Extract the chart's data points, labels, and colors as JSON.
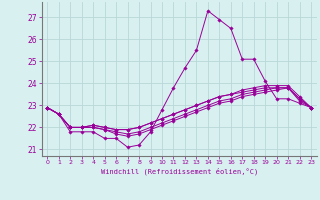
{
  "xlabel": "Windchill (Refroidissement éolien,°C)",
  "background_color": "#d8f0f0",
  "line_color": "#990099",
  "grid_color": "#b8d8d8",
  "xlim": [
    -0.5,
    23.5
  ],
  "ylim": [
    20.7,
    27.7
  ],
  "yticks": [
    21,
    22,
    23,
    24,
    25,
    26,
    27
  ],
  "xticks": [
    0,
    1,
    2,
    3,
    4,
    5,
    6,
    7,
    8,
    9,
    10,
    11,
    12,
    13,
    14,
    15,
    16,
    17,
    18,
    19,
    20,
    21,
    22,
    23
  ],
  "lines": [
    [
      22.9,
      22.6,
      21.8,
      21.8,
      21.8,
      21.5,
      21.5,
      21.1,
      21.2,
      21.8,
      22.8,
      23.8,
      24.7,
      25.5,
      27.3,
      26.9,
      26.5,
      25.1,
      25.1,
      24.1,
      23.3,
      23.3,
      23.1,
      22.9
    ],
    [
      22.9,
      22.6,
      22.0,
      22.0,
      22.1,
      22.0,
      21.9,
      21.9,
      22.0,
      22.2,
      22.4,
      22.6,
      22.8,
      23.0,
      23.2,
      23.4,
      23.5,
      23.6,
      23.7,
      23.8,
      23.8,
      23.8,
      23.3,
      22.9
    ],
    [
      22.9,
      22.6,
      22.0,
      22.0,
      22.1,
      22.0,
      21.9,
      21.9,
      22.0,
      22.2,
      22.4,
      22.6,
      22.8,
      23.0,
      23.2,
      23.4,
      23.5,
      23.7,
      23.8,
      23.9,
      23.9,
      23.9,
      23.4,
      22.9
    ],
    [
      22.9,
      22.6,
      22.0,
      22.0,
      22.0,
      21.9,
      21.8,
      21.7,
      21.8,
      22.0,
      22.2,
      22.4,
      22.6,
      22.8,
      23.0,
      23.2,
      23.3,
      23.5,
      23.6,
      23.7,
      23.8,
      23.8,
      23.3,
      22.9
    ],
    [
      22.9,
      22.6,
      22.0,
      22.0,
      22.0,
      21.9,
      21.7,
      21.6,
      21.7,
      21.9,
      22.1,
      22.3,
      22.5,
      22.7,
      22.9,
      23.1,
      23.2,
      23.4,
      23.5,
      23.6,
      23.7,
      23.8,
      23.2,
      22.9
    ]
  ]
}
